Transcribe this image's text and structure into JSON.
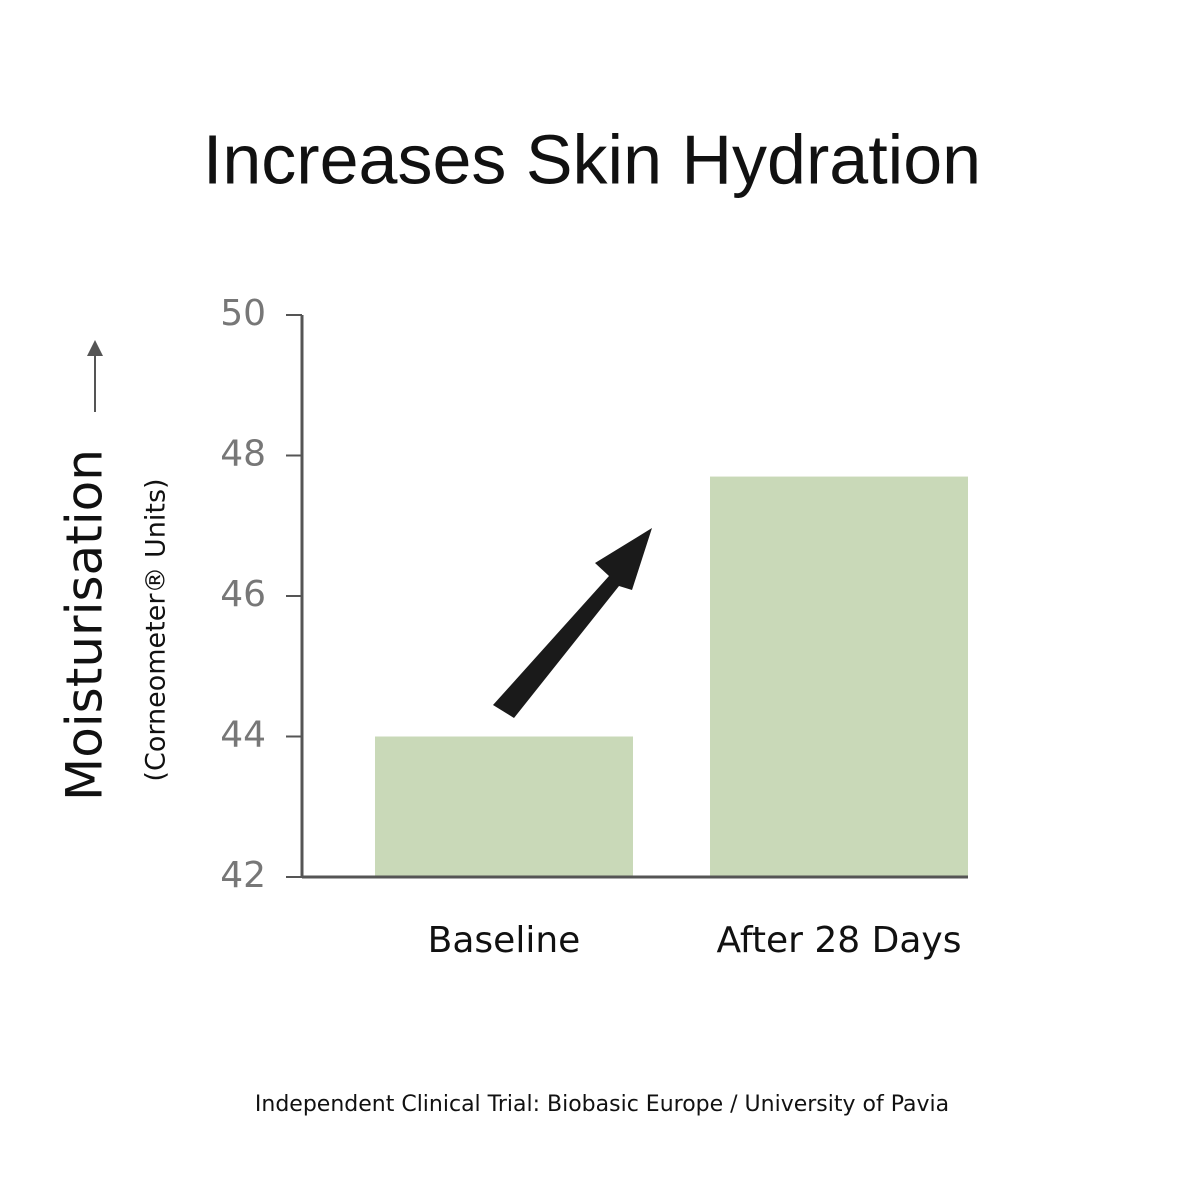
{
  "chart_data": {
    "type": "bar",
    "title": "Increases Skin Hydration",
    "y_label": "Moisturisation",
    "y_label_sub": "(Corneometer® Units)",
    "categories": [
      "Baseline",
      "After 28 Days"
    ],
    "values": [
      44,
      47.7
    ],
    "color": "#c9d9b8",
    "ylim": [
      42,
      50
    ],
    "yticks": [
      42,
      44,
      46,
      48,
      50
    ],
    "footnote": "Independent Clinical Trial: Biobasic Europe / University of Pavia"
  }
}
